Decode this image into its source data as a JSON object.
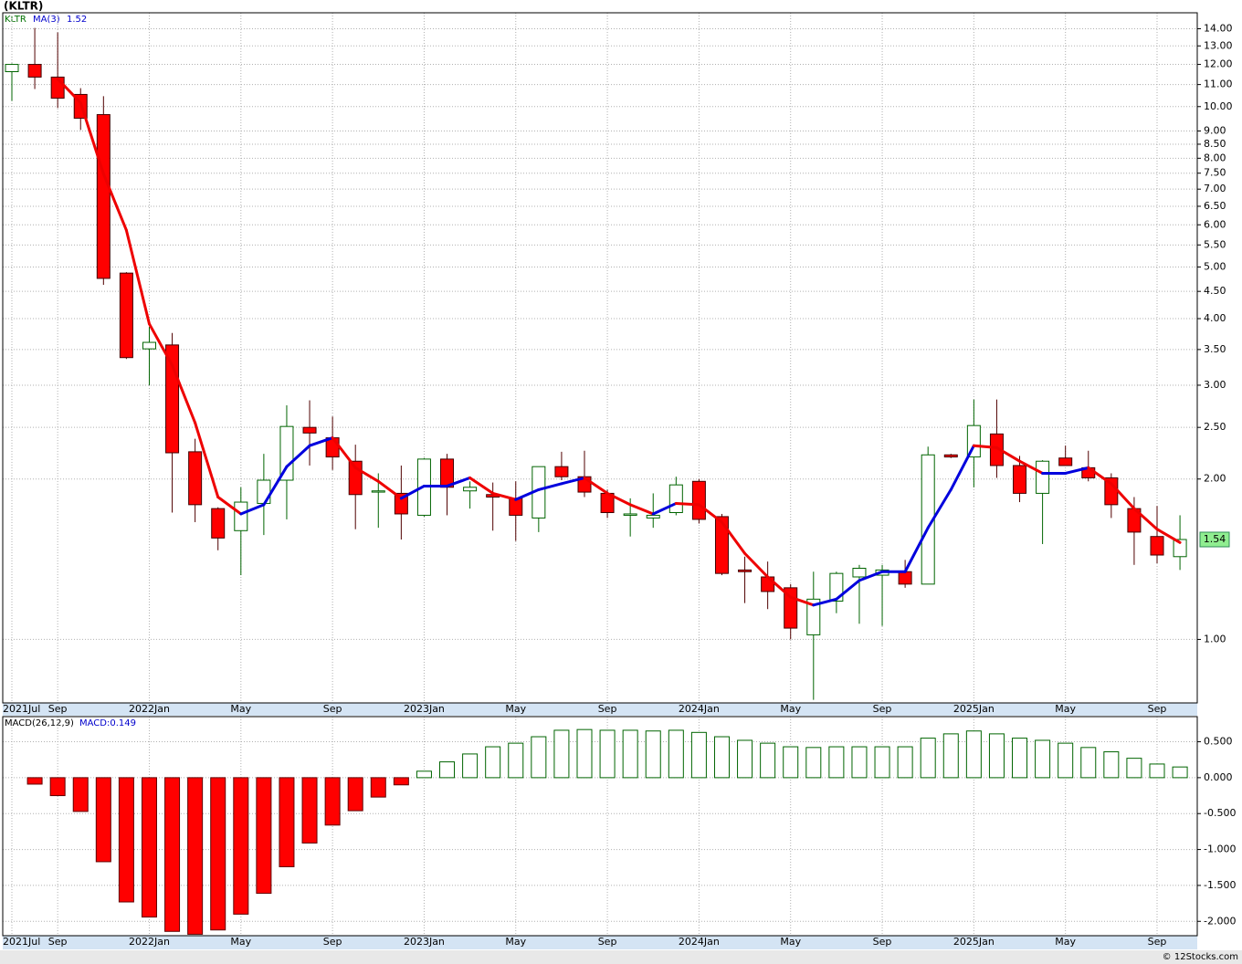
{
  "title": "(KLTR)",
  "footer": "© 12Stocks.com",
  "chart_data": [
    {
      "type": "candlestick",
      "symbol": "KLTR",
      "log_scale": true,
      "grid": true,
      "up_color": "#006400",
      "down_color": "#ff0000",
      "categories": [
        "2021Jul",
        null,
        "Sep",
        null,
        null,
        null,
        "2022Jan",
        null,
        null,
        null,
        "May",
        null,
        null,
        null,
        "Sep",
        null,
        null,
        null,
        "2023Jan",
        null,
        null,
        null,
        "May",
        null,
        null,
        null,
        "Sep",
        null,
        null,
        null,
        "2024Jan",
        null,
        null,
        null,
        "May",
        null,
        null,
        null,
        "Sep",
        null,
        null,
        null,
        "2025Jan",
        null,
        null,
        null,
        "May",
        null,
        null,
        null,
        "Sep",
        null
      ],
      "open": [
        11.63,
        12.0,
        11.36,
        10.54,
        9.66,
        4.87,
        3.51,
        3.57,
        2.25,
        1.76,
        1.6,
        1.8,
        1.99,
        2.5,
        2.39,
        2.16,
        1.89,
        1.88,
        1.71,
        2.18,
        1.9,
        1.87,
        1.84,
        1.69,
        2.11,
        2.02,
        1.88,
        1.71,
        1.69,
        1.73,
        1.98,
        1.7,
        1.35,
        1.31,
        1.25,
        1.02,
        1.18,
        1.31,
        1.32,
        1.34,
        1.27,
        2.22,
        2.2,
        2.43,
        2.12,
        1.88,
        2.19,
        2.1,
        2.01,
        1.76,
        1.56,
        1.43
      ],
      "high": [
        12.05,
        14.05,
        13.78,
        10.83,
        10.46,
        4.89,
        3.86,
        3.76,
        2.38,
        1.77,
        1.93,
        2.23,
        2.75,
        2.81,
        2.62,
        2.32,
        2.05,
        2.12,
        2.19,
        2.23,
        1.98,
        1.97,
        1.98,
        2.11,
        2.25,
        2.26,
        1.91,
        1.84,
        1.88,
        2.02,
        2.0,
        1.72,
        1.43,
        1.4,
        1.27,
        1.34,
        1.34,
        1.38,
        1.38,
        1.41,
        2.3,
        2.23,
        2.82,
        2.82,
        2.21,
        2.17,
        2.31,
        2.26,
        2.05,
        1.85,
        1.78,
        1.71
      ],
      "low": [
        10.25,
        10.79,
        9.94,
        9.04,
        4.63,
        3.36,
        3.0,
        1.73,
        1.66,
        1.47,
        1.32,
        1.57,
        1.68,
        2.12,
        2.08,
        1.61,
        1.62,
        1.54,
        1.7,
        1.71,
        1.76,
        1.6,
        1.53,
        1.59,
        1.99,
        1.85,
        1.69,
        1.56,
        1.62,
        1.71,
        1.65,
        1.32,
        1.17,
        1.14,
        1.0,
        0.77,
        1.12,
        1.07,
        1.06,
        1.25,
        1.27,
        2.19,
        1.93,
        2.01,
        1.81,
        1.51,
        2.12,
        1.98,
        1.69,
        1.38,
        1.39,
        1.35
      ],
      "close": [
        12.0,
        11.36,
        10.37,
        9.51,
        4.76,
        3.38,
        3.61,
        2.24,
        1.79,
        1.55,
        1.81,
        1.99,
        2.51,
        2.44,
        2.2,
        1.87,
        1.9,
        1.72,
        2.18,
        1.93,
        1.93,
        1.85,
        1.71,
        2.11,
        2.02,
        1.89,
        1.73,
        1.72,
        1.71,
        1.95,
        1.68,
        1.33,
        1.34,
        1.23,
        1.05,
        1.19,
        1.33,
        1.36,
        1.35,
        1.27,
        2.22,
        2.2,
        2.52,
        2.12,
        1.88,
        2.16,
        2.12,
        2.01,
        1.79,
        1.59,
        1.44,
        1.54
      ],
      "ma": {
        "name": "MA(3)",
        "rising_color": "#0000dd",
        "falling_color": "#ee0000",
        "values": [
          null,
          null,
          11.27,
          10.17,
          7.48,
          5.86,
          3.91,
          3.27,
          2.55,
          1.85,
          1.72,
          1.79,
          2.11,
          2.31,
          2.39,
          2.1,
          1.98,
          1.84,
          1.94,
          1.94,
          2.01,
          1.88,
          1.83,
          1.91,
          1.96,
          2.01,
          1.88,
          1.79,
          1.72,
          1.8,
          1.79,
          1.66,
          1.45,
          1.31,
          1.2,
          1.16,
          1.19,
          1.29,
          1.34,
          1.34,
          1.62,
          1.91,
          2.31,
          2.29,
          2.16,
          2.05,
          2.05,
          2.1,
          1.96,
          1.76,
          1.61,
          1.52
        ]
      },
      "ylim": [
        0.76,
        15.0
      ],
      "yticks": [
        {
          "value": 1,
          "label": "1.00"
        },
        {
          "value": 2,
          "label": "2.00"
        },
        {
          "value": 2.5,
          "label": "2.50"
        },
        {
          "value": 3,
          "label": "3.00"
        },
        {
          "value": 3.5,
          "label": "3.50"
        },
        {
          "value": 4,
          "label": "4.00"
        },
        {
          "value": 4.5,
          "label": "4.50"
        },
        {
          "value": 5,
          "label": "5.00"
        },
        {
          "value": 5.5,
          "label": "5.50"
        },
        {
          "value": 6,
          "label": "6.00"
        },
        {
          "value": 6.5,
          "label": "6.50"
        },
        {
          "value": 7,
          "label": "7.00"
        },
        {
          "value": 7.5,
          "label": "7.50"
        },
        {
          "value": 8,
          "label": "8.00"
        },
        {
          "value": 8.5,
          "label": "8.50"
        },
        {
          "value": 9,
          "label": "9.00"
        },
        {
          "value": 10,
          "label": "10.00"
        },
        {
          "value": 11,
          "label": "11.00"
        },
        {
          "value": 12,
          "label": "12.00"
        },
        {
          "value": 13,
          "label": "13.00"
        },
        {
          "value": 14,
          "label": "14.00"
        }
      ]
    },
    {
      "type": "bar",
      "name": "MACD(26,12,9)",
      "value_text": "MACD:0.149",
      "grid": true,
      "positive_color": "#006400",
      "negative_color": "#ff0000",
      "categories": [
        "2021Jul",
        null,
        "Sep",
        null,
        null,
        null,
        "2022Jan",
        null,
        null,
        null,
        "May",
        null,
        null,
        null,
        "Sep",
        null,
        null,
        null,
        "2023Jan",
        null,
        null,
        null,
        "May",
        null,
        null,
        null,
        "Sep",
        null,
        null,
        null,
        "2024Jan",
        null,
        null,
        null,
        "May",
        null,
        null,
        null,
        "Sep",
        null,
        null,
        null,
        "2025Jan",
        null,
        null,
        null,
        "May",
        null,
        null,
        null,
        "Sep",
        null
      ],
      "values": [
        null,
        -0.09,
        -0.25,
        -0.47,
        -1.17,
        -1.73,
        -1.94,
        -2.14,
        -2.18,
        -2.12,
        -1.9,
        -1.61,
        -1.24,
        -0.91,
        -0.66,
        -0.46,
        -0.27,
        -0.1,
        0.09,
        0.22,
        0.33,
        0.43,
        0.48,
        0.57,
        0.66,
        0.67,
        0.66,
        0.66,
        0.65,
        0.66,
        0.63,
        0.57,
        0.52,
        0.48,
        0.43,
        0.42,
        0.43,
        0.43,
        0.43,
        0.43,
        0.55,
        0.61,
        0.65,
        0.61,
        0.55,
        0.52,
        0.48,
        0.42,
        0.36,
        0.27,
        0.19,
        0.149
      ],
      "ylim": [
        -2.2,
        0.85
      ],
      "yticks": [
        {
          "value": -2,
          "label": "-2.000"
        },
        {
          "value": -1.5,
          "label": "-1.500"
        },
        {
          "value": -1,
          "label": "-1.000"
        },
        {
          "value": -0.5,
          "label": "-0.500"
        },
        {
          "value": 0,
          "label": "0.000"
        },
        {
          "value": 0.5,
          "label": "0.500"
        }
      ]
    }
  ]
}
